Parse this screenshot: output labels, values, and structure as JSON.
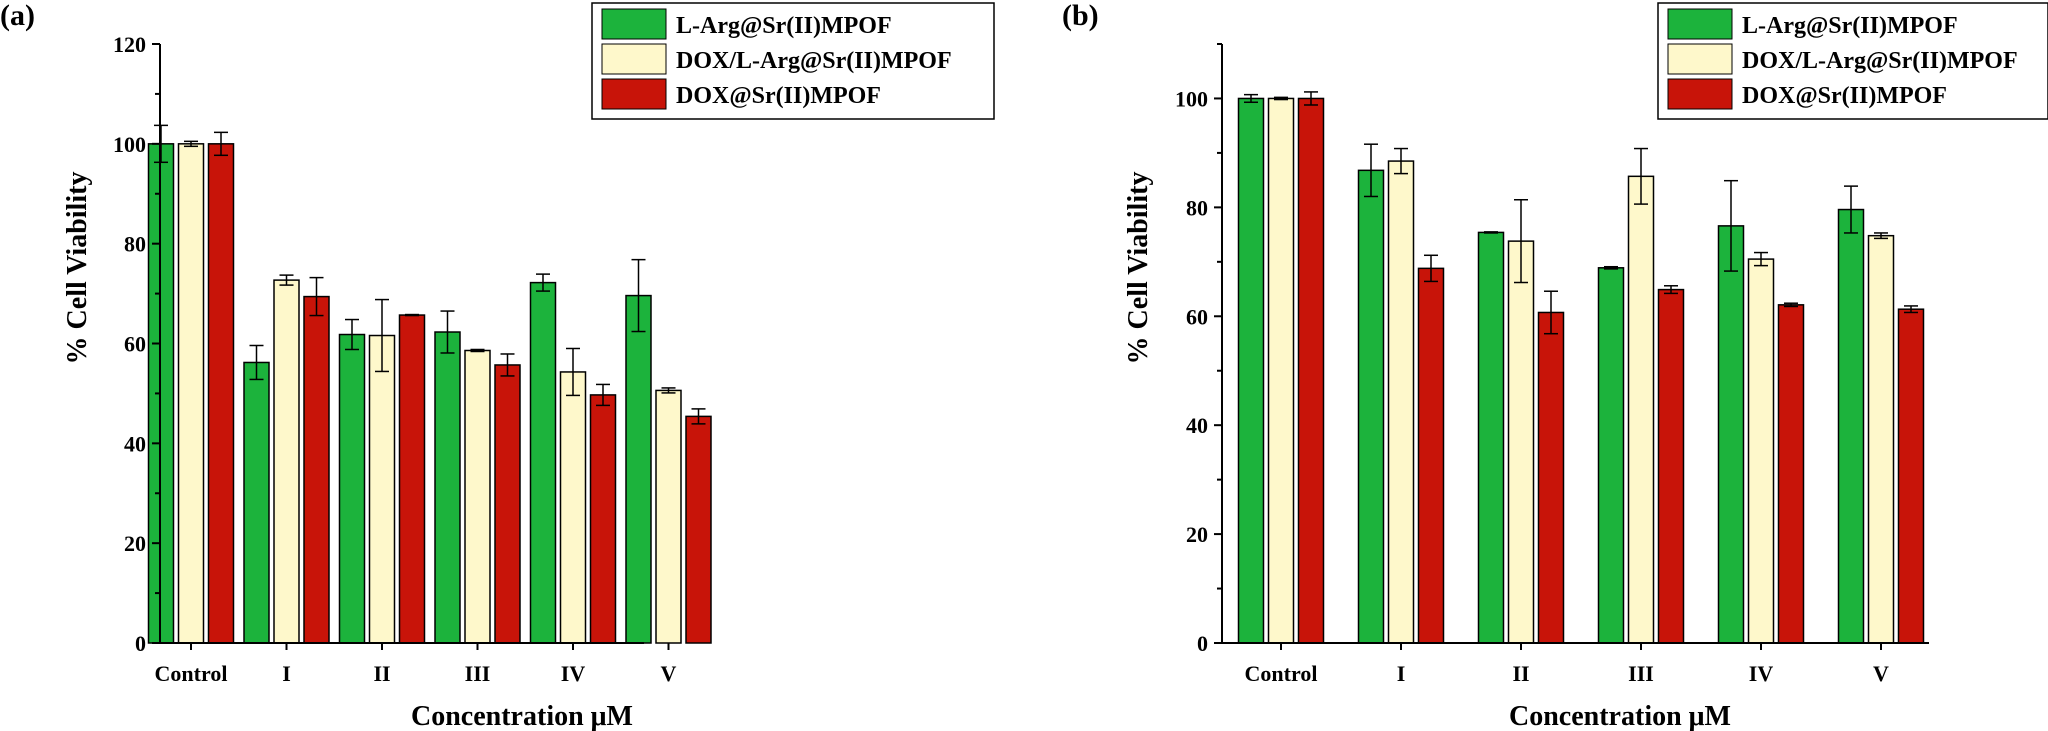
{
  "colors": {
    "green": "#1cb33c",
    "cream": "#fef8cb",
    "red": "#c81409",
    "axis": "#000000"
  },
  "chart_data": [
    {
      "type": "bar",
      "panel_label": "(a)",
      "categories": [
        "Control",
        "I",
        "II",
        "III",
        "IV",
        "V"
      ],
      "xlabel": "Concentration μM",
      "ylabel": "% Cell Viability",
      "ylim": [
        0,
        120
      ],
      "yticks": [
        0,
        20,
        40,
        60,
        80,
        100,
        120
      ],
      "legend_position": "top-right",
      "series": [
        {
          "name": "L-Arg@Sr(II)MPOF",
          "color_key": "green",
          "values": [
            100,
            56.2,
            61.8,
            62.3,
            72.2,
            69.6
          ],
          "errors": [
            3.7,
            3.4,
            3.0,
            4.2,
            1.7,
            7.2
          ]
        },
        {
          "name": "DOX/L-Arg@Sr(II)MPOF",
          "color_key": "cream",
          "values": [
            100,
            72.7,
            61.6,
            58.6,
            54.3,
            50.6
          ],
          "errors": [
            0.5,
            1.0,
            7.2,
            0.2,
            4.7,
            0.5
          ]
        },
        {
          "name": "DOX@Sr(II)MPOF",
          "color_key": "red",
          "values": [
            100,
            69.4,
            65.7,
            55.7,
            49.7,
            45.4
          ],
          "errors": [
            2.3,
            3.8,
            0.1,
            2.2,
            2.1,
            1.5
          ]
        }
      ]
    },
    {
      "type": "bar",
      "panel_label": "(b)",
      "categories": [
        "Control",
        "I",
        "II",
        "III",
        "IV",
        "V"
      ],
      "xlabel": "Concentration μM",
      "ylabel": "% Cell Viability",
      "ylim": [
        0,
        110
      ],
      "yticks": [
        0,
        20,
        40,
        60,
        80,
        100
      ],
      "legend_position": "top-right",
      "series": [
        {
          "name": "L-Arg@Sr(II)MPOF",
          "color_key": "green",
          "values": [
            100,
            86.8,
            75.4,
            68.9,
            76.6,
            79.6
          ],
          "errors": [
            0.7,
            4.8,
            0.1,
            0.2,
            8.3,
            4.3
          ]
        },
        {
          "name": "DOX/L-Arg@Sr(II)MPOF",
          "color_key": "cream",
          "values": [
            100,
            88.5,
            73.8,
            85.7,
            70.5,
            74.8
          ],
          "errors": [
            0.2,
            2.3,
            7.6,
            5.1,
            1.2,
            0.5
          ]
        },
        {
          "name": "DOX@Sr(II)MPOF",
          "color_key": "red",
          "values": [
            100,
            68.8,
            60.7,
            64.9,
            62.1,
            61.3
          ],
          "errors": [
            1.2,
            2.4,
            3.9,
            0.7,
            0.3,
            0.6
          ]
        }
      ]
    }
  ]
}
